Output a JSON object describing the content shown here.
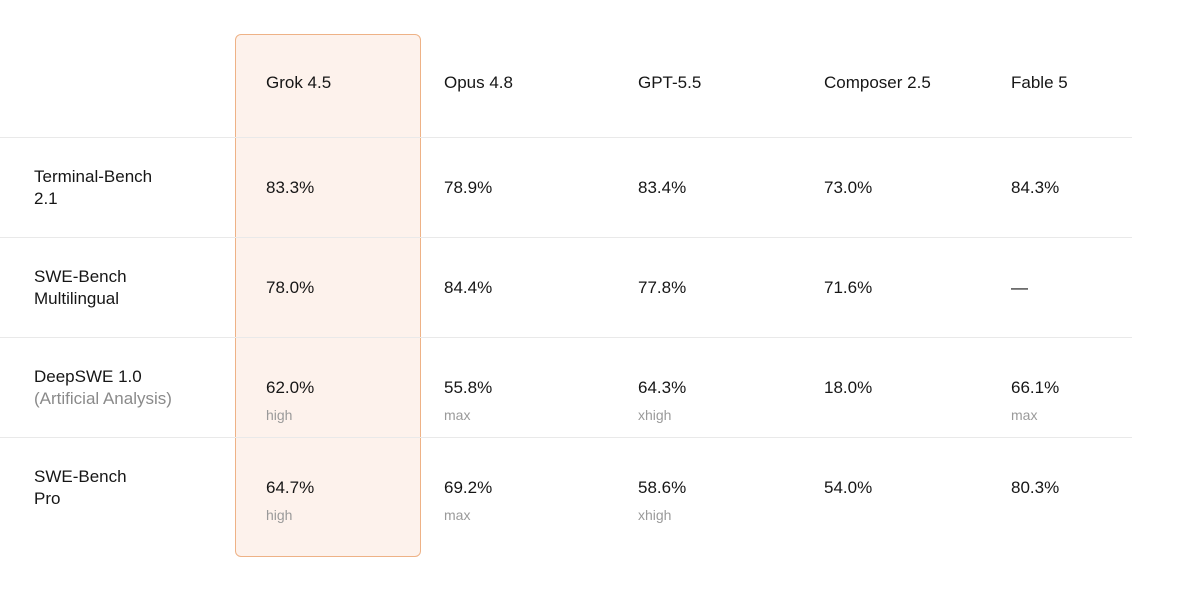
{
  "table": {
    "columns": [
      "Grok 4.5",
      "Opus 4.8",
      "GPT-5.5",
      "Composer 2.5",
      "Fable 5"
    ],
    "rows": [
      {
        "label": [
          "Terminal-Bench",
          "2.1"
        ],
        "cells": [
          {
            "value": "83.3%"
          },
          {
            "value": "78.9%"
          },
          {
            "value": "83.4%"
          },
          {
            "value": "73.0%"
          },
          {
            "value": "84.3%"
          }
        ]
      },
      {
        "label": [
          "SWE-Bench",
          "Multilingual"
        ],
        "cells": [
          {
            "value": "78.0%"
          },
          {
            "value": "84.4%"
          },
          {
            "value": "77.8%"
          },
          {
            "value": "71.6%"
          },
          {
            "value": "—"
          }
        ]
      },
      {
        "label": [
          "DeepSWE 1.0"
        ],
        "sublabel": "(Artificial Analysis)",
        "cells": [
          {
            "value": "62.0%",
            "note": "high"
          },
          {
            "value": "55.8%",
            "note": "max"
          },
          {
            "value": "64.3%",
            "note": "xhigh"
          },
          {
            "value": "18.0%"
          },
          {
            "value": "66.1%",
            "note": "max"
          }
        ]
      },
      {
        "label": [
          "SWE-Bench",
          "Pro"
        ],
        "cells": [
          {
            "value": "64.7%",
            "note": "high"
          },
          {
            "value": "69.2%",
            "note": "max"
          },
          {
            "value": "58.6%",
            "note": "xhigh"
          },
          {
            "value": "54.0%"
          },
          {
            "value": "80.3%"
          }
        ]
      }
    ]
  }
}
